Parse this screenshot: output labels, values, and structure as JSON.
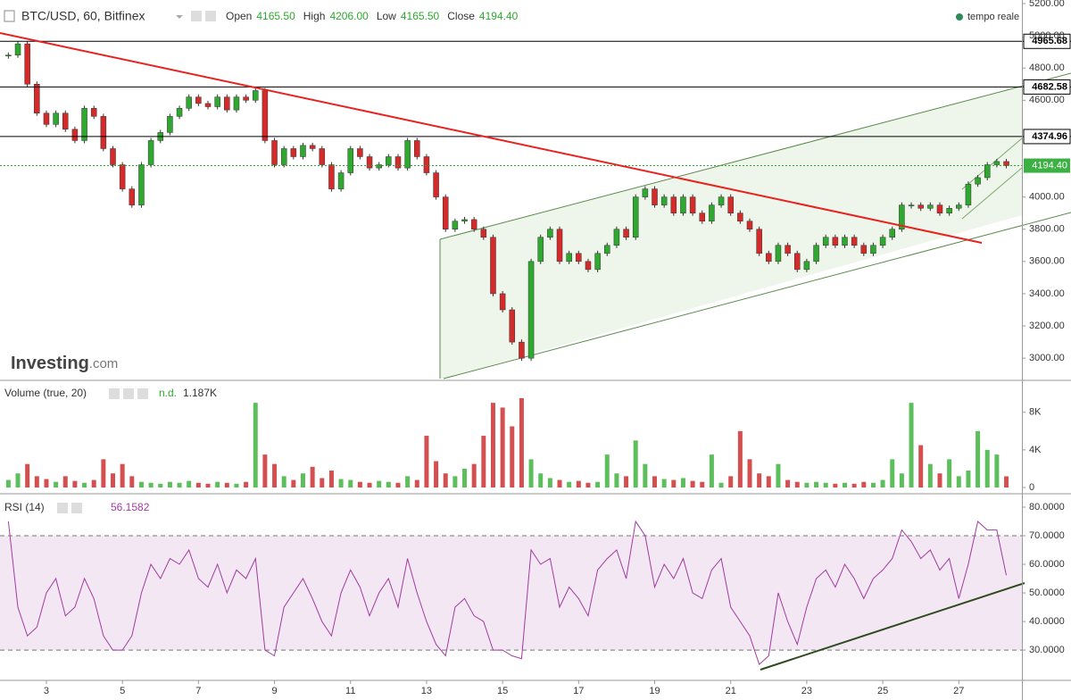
{
  "header": {
    "symbol": "BTC/USD, 60, Bitfinex",
    "fields": [
      {
        "label": "Open",
        "value": "4165.50"
      },
      {
        "label": "High",
        "value": "4206.00"
      },
      {
        "label": "Low",
        "value": "4165.50"
      },
      {
        "label": "Close",
        "value": "4194.40"
      }
    ],
    "status": "tempo reale",
    "brand": "Investing",
    "brand_suffix": ".com"
  },
  "chart_data": [
    {
      "type": "candlestick",
      "up_color": "#2ea82e",
      "down_color": "#d42a2a",
      "x": [
        2,
        2.25,
        2.5,
        2.75,
        3,
        3.25,
        3.5,
        3.75,
        4,
        4.25,
        4.5,
        4.75,
        5,
        5.25,
        5.5,
        5.75,
        6,
        6.25,
        6.5,
        6.75,
        7,
        7.25,
        7.5,
        7.75,
        8,
        8.25,
        8.5,
        8.75,
        9,
        9.25,
        9.5,
        9.75,
        10,
        10.25,
        10.5,
        10.75,
        11,
        11.25,
        11.5,
        11.75,
        12,
        12.25,
        12.5,
        12.75,
        13,
        13.25,
        13.5,
        13.75,
        14,
        14.25,
        14.5,
        14.75,
        15,
        15.25,
        15.5,
        15.75,
        16,
        16.25,
        16.5,
        16.75,
        17,
        17.25,
        17.5,
        17.75,
        18,
        18.25,
        18.5,
        18.75,
        19,
        19.25,
        19.5,
        19.75,
        20,
        20.25,
        20.5,
        20.75,
        21,
        21.25,
        21.5,
        21.75,
        22,
        22.25,
        22.5,
        22.75,
        23,
        23.25,
        23.5,
        23.75,
        24,
        24.25,
        24.5,
        24.75,
        25,
        25.25,
        25.5,
        25.75,
        26,
        26.25,
        26.5,
        26.75,
        27,
        27.25,
        27.5,
        27.75,
        28,
        28.25
      ],
      "values": [
        4880,
        4950,
        4700,
        4520,
        4450,
        4520,
        4420,
        4350,
        4550,
        4500,
        4300,
        4200,
        4050,
        3950,
        4200,
        4350,
        4400,
        4500,
        4550,
        4620,
        4580,
        4560,
        4620,
        4540,
        4620,
        4600,
        4660,
        4350,
        4200,
        4300,
        4250,
        4320,
        4300,
        4200,
        4050,
        4150,
        4300,
        4250,
        4180,
        4200,
        4250,
        4180,
        4350,
        4250,
        4150,
        4000,
        3800,
        3850,
        3860,
        3800,
        3750,
        3400,
        3300,
        3100,
        3000,
        3600,
        3750,
        3800,
        3600,
        3650,
        3600,
        3550,
        3650,
        3700,
        3800,
        3750,
        4000,
        4050,
        3950,
        4000,
        3900,
        4000,
        3900,
        3850,
        3950,
        4000,
        3900,
        3850,
        3800,
        3650,
        3600,
        3700,
        3650,
        3550,
        3600,
        3700,
        3750,
        3700,
        3750,
        3700,
        3650,
        3700,
        3750,
        3800,
        3950,
        3950,
        3930,
        3950,
        3900,
        3930,
        3950,
        4080,
        4120,
        4200,
        4220,
        4194.4
      ],
      "xlim": [
        1.78,
        28.66
      ],
      "ylim": [
        2868,
        5222
      ],
      "yticks": [
        {
          "value": 3000,
          "label": "3000.00"
        },
        {
          "value": 3200,
          "label": "3200.00"
        },
        {
          "value": 3400,
          "label": "3400.00"
        },
        {
          "value": 3600,
          "label": "3600.00"
        },
        {
          "value": 3800,
          "label": "3800.00"
        },
        {
          "value": 4000,
          "label": "4000.00"
        },
        {
          "value": 4600,
          "label": "4600.00"
        },
        {
          "value": 4800,
          "label": "4800.00"
        },
        {
          "value": 5000,
          "label": "5000.00"
        },
        {
          "value": 5200,
          "label": "5200.00"
        }
      ],
      "levels": [
        4965.68,
        4682.58,
        4374.96
      ],
      "last": {
        "value": 4194.4,
        "label": "4194.40"
      }
    },
    {
      "type": "bar",
      "title": "Volume (true, 20)",
      "status": "n.d.",
      "last_label": "1.187K",
      "x": [
        2,
        2.25,
        2.5,
        2.75,
        3,
        3.25,
        3.5,
        3.75,
        4,
        4.25,
        4.5,
        4.75,
        5,
        5.25,
        5.5,
        5.75,
        6,
        6.25,
        6.5,
        6.75,
        7,
        7.25,
        7.5,
        7.75,
        8,
        8.25,
        8.5,
        8.75,
        9,
        9.25,
        9.5,
        9.75,
        10,
        10.25,
        10.5,
        10.75,
        11,
        11.25,
        11.5,
        11.75,
        12,
        12.25,
        12.5,
        12.75,
        13,
        13.25,
        13.5,
        13.75,
        14,
        14.25,
        14.5,
        14.75,
        15,
        15.25,
        15.5,
        15.75,
        16,
        16.25,
        16.5,
        16.75,
        17,
        17.25,
        17.5,
        17.75,
        18,
        18.25,
        18.5,
        18.75,
        19,
        19.25,
        19.5,
        19.75,
        20,
        20.25,
        20.5,
        20.75,
        21,
        21.25,
        21.5,
        21.75,
        22,
        22.25,
        22.5,
        22.75,
        23,
        23.25,
        23.5,
        23.75,
        24,
        24.25,
        24.5,
        24.75,
        25,
        25.25,
        25.5,
        25.75,
        26,
        26.25,
        26.5,
        26.75,
        27,
        27.25,
        27.5,
        27.75,
        28,
        28.25
      ],
      "values": [
        800,
        1500,
        2500,
        1200,
        900,
        600,
        1200,
        700,
        500,
        800,
        3000,
        1500,
        2500,
        1200,
        600,
        500,
        400,
        600,
        500,
        700,
        500,
        400,
        600,
        500,
        400,
        600,
        9000,
        3500,
        2500,
        1200,
        800,
        1500,
        2200,
        1000,
        1800,
        900,
        800,
        600,
        500,
        700,
        600,
        500,
        1200,
        800,
        5500,
        2800,
        1500,
        1200,
        2000,
        2500,
        5500,
        9000,
        8500,
        6500,
        9500,
        3000,
        1500,
        1000,
        800,
        600,
        700,
        500,
        600,
        3500,
        1500,
        1200,
        5000,
        2500,
        1200,
        900,
        800,
        1000,
        700,
        600,
        3500,
        500,
        1200,
        6000,
        3000,
        1500,
        1200,
        2500,
        800,
        600,
        500,
        600,
        500,
        400,
        500,
        400,
        600,
        500,
        800,
        3000,
        1500,
        9000,
        4500,
        2500,
        1500,
        3000,
        1200,
        1800,
        6000,
        4000,
        3500,
        1187
      ],
      "xlim": [
        1.78,
        28.66
      ],
      "ylim": [
        0,
        11200
      ],
      "yticks": [
        0,
        {
          "value": 4000,
          "label": "4K"
        },
        {
          "value": 8000,
          "label": "8K"
        }
      ]
    },
    {
      "type": "line",
      "title": "RSI (14)",
      "last_label": "56.1582",
      "color": "#a03ca0",
      "x": [
        2,
        2.25,
        2.5,
        2.75,
        3,
        3.25,
        3.5,
        3.75,
        4,
        4.25,
        4.5,
        4.75,
        5,
        5.25,
        5.5,
        5.75,
        6,
        6.25,
        6.5,
        6.75,
        7,
        7.25,
        7.5,
        7.75,
        8,
        8.25,
        8.5,
        8.75,
        9,
        9.25,
        9.5,
        9.75,
        10,
        10.25,
        10.5,
        10.75,
        11,
        11.25,
        11.5,
        11.75,
        12,
        12.25,
        12.5,
        12.75,
        13,
        13.25,
        13.5,
        13.75,
        14,
        14.25,
        14.5,
        14.75,
        15,
        15.25,
        15.5,
        15.75,
        16,
        16.25,
        16.5,
        16.75,
        17,
        17.25,
        17.5,
        17.75,
        18,
        18.25,
        18.5,
        18.75,
        19,
        19.25,
        19.5,
        19.75,
        20,
        20.25,
        20.5,
        20.75,
        21,
        21.25,
        21.5,
        21.75,
        22,
        22.25,
        22.5,
        22.75,
        23,
        23.25,
        23.5,
        23.75,
        24,
        24.25,
        24.5,
        24.75,
        25,
        25.25,
        25.5,
        25.75,
        26,
        26.25,
        26.5,
        26.75,
        27,
        27.25,
        27.5,
        27.75,
        28,
        28.25
      ],
      "values": [
        75,
        45,
        35,
        38,
        50,
        55,
        42,
        45,
        55,
        48,
        35,
        30,
        30,
        35,
        50,
        60,
        55,
        62,
        60,
        65,
        55,
        52,
        60,
        50,
        58,
        55,
        62,
        30,
        28,
        45,
        50,
        55,
        48,
        40,
        35,
        50,
        58,
        52,
        42,
        50,
        55,
        45,
        62,
        50,
        40,
        32,
        28,
        45,
        48,
        42,
        40,
        30,
        30,
        28,
        27,
        65,
        60,
        62,
        45,
        52,
        48,
        42,
        58,
        62,
        65,
        55,
        75,
        70,
        52,
        60,
        55,
        62,
        50,
        48,
        58,
        62,
        45,
        40,
        35,
        25,
        28,
        50,
        40,
        32,
        45,
        55,
        58,
        52,
        60,
        55,
        48,
        55,
        58,
        62,
        72,
        68,
        62,
        65,
        58,
        62,
        48,
        60,
        75,
        72,
        72,
        56.1582
      ],
      "xlim": [
        1.78,
        28.66
      ],
      "ylim": [
        19.4,
        83.75
      ],
      "yticks": [
        {
          "value": 30,
          "label": "30.0000"
        },
        {
          "value": 40,
          "label": "40.0000"
        },
        {
          "value": 50,
          "label": "50.0000"
        },
        {
          "value": 60,
          "label": "60.0000"
        },
        {
          "value": 70,
          "label": "70.0000"
        },
        {
          "value": 80,
          "label": "80.0000"
        }
      ],
      "bands": [
        30,
        70
      ],
      "xticks": [
        3,
        5,
        7,
        9,
        11,
        13,
        15,
        17,
        19,
        21,
        23,
        25,
        27
      ]
    }
  ]
}
